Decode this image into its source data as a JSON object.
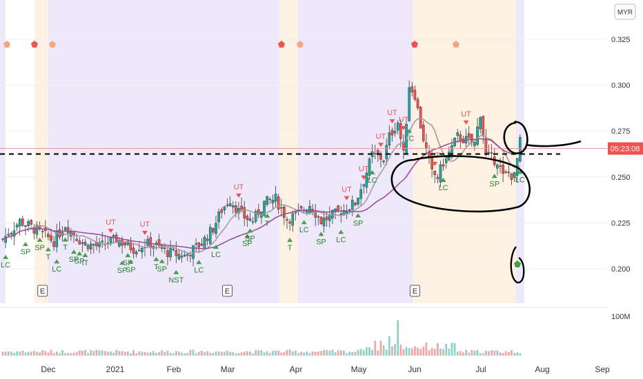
{
  "chart_data": {
    "type": "candlestick",
    "currency": "MYR",
    "price_axis": {
      "min": 0.18,
      "max": 0.335,
      "ticks": [
        "0.325",
        "0.300",
        "0.275",
        "0.250",
        "0.225",
        "0.200"
      ]
    },
    "volume_axis": {
      "max": 100000000,
      "tick_label": "100M"
    },
    "current_price_label": "05:23:08",
    "current_price": 0.2655,
    "support_line_price": 0.2625,
    "x_labels": [
      "Dec",
      "2021",
      "Feb",
      "Mar",
      "Apr",
      "May",
      "Jun",
      "Jul",
      "Aug",
      "Sep"
    ],
    "bar_count": 183,
    "signals": [
      {
        "label": "LC",
        "bar": 1,
        "dir": "up"
      },
      {
        "label": "SP",
        "bar": 8,
        "dir": "up"
      },
      {
        "label": "SP",
        "bar": 13,
        "dir": "up"
      },
      {
        "label": "T",
        "bar": 16,
        "dir": "up"
      },
      {
        "label": "LC",
        "bar": 19,
        "dir": "up"
      },
      {
        "label": "T",
        "bar": 22,
        "dir": "up"
      },
      {
        "label": "SP",
        "bar": 25,
        "dir": "up"
      },
      {
        "label": "SP",
        "bar": 27,
        "dir": "up"
      },
      {
        "label": "IT",
        "bar": 29,
        "dir": "up"
      },
      {
        "label": "UT",
        "bar": 38,
        "dir": "down"
      },
      {
        "label": "SP",
        "bar": 42,
        "dir": "up"
      },
      {
        "label": "SP",
        "bar": 44,
        "dir": "up"
      },
      {
        "label": "SP",
        "bar": 45,
        "dir": "up"
      },
      {
        "label": "UT",
        "bar": 50,
        "dir": "down"
      },
      {
        "label": "T",
        "bar": 54,
        "dir": "up"
      },
      {
        "label": "SP",
        "bar": 56,
        "dir": "up"
      },
      {
        "label": "NST",
        "bar": 61,
        "dir": "up"
      },
      {
        "label": "LC",
        "bar": 69,
        "dir": "up"
      },
      {
        "label": "LC",
        "bar": 75,
        "dir": "up"
      },
      {
        "label": "UT",
        "bar": 83,
        "dir": "down"
      },
      {
        "label": "SP",
        "bar": 86,
        "dir": "up"
      },
      {
        "label": "T",
        "bar": 93,
        "dir": "up"
      },
      {
        "label": "SP",
        "bar": 87,
        "dir": "up"
      },
      {
        "label": "T",
        "bar": 101,
        "dir": "up"
      },
      {
        "label": "LC",
        "bar": 106,
        "dir": "up"
      },
      {
        "label": "SP",
        "bar": 112,
        "dir": "up"
      },
      {
        "label": "LC",
        "bar": 119,
        "dir": "up"
      },
      {
        "label": "SP",
        "bar": 125,
        "dir": "up"
      },
      {
        "label": "UT",
        "bar": 121,
        "dir": "down"
      },
      {
        "label": "UT",
        "bar": 127,
        "dir": "down"
      },
      {
        "label": "LC",
        "bar": 130,
        "dir": "up"
      },
      {
        "label": "UT",
        "bar": 133,
        "dir": "down"
      },
      {
        "label": "UT",
        "bar": 137,
        "dir": "down"
      },
      {
        "label": "LC",
        "bar": 143,
        "dir": "up"
      },
      {
        "label": "UT",
        "bar": 141,
        "dir": "down"
      },
      {
        "label": "UT",
        "bar": 152,
        "dir": "down"
      },
      {
        "label": "LC",
        "bar": 155,
        "dir": "up"
      },
      {
        "label": "UT",
        "bar": 163,
        "dir": "down"
      },
      {
        "label": "SP",
        "bar": 173,
        "dir": "up"
      },
      {
        "label": "LC",
        "bar": 184,
        "dir": "up"
      }
    ],
    "earnings_markers": [
      {
        "label": "E",
        "bar": 14
      },
      {
        "label": "E",
        "bar": 79
      },
      {
        "label": "E",
        "bar": 145
      }
    ]
  }
}
